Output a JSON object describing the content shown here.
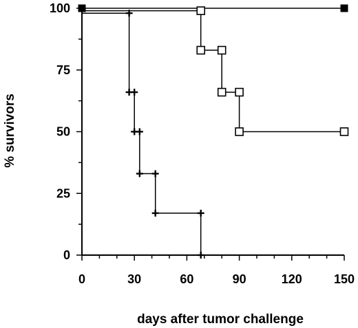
{
  "chart_data": {
    "type": "line",
    "xlabel": "days after tumor challenge",
    "ylabel": "% survivors",
    "xlim": [
      0,
      150
    ],
    "ylim": [
      0,
      100
    ],
    "xticks": [
      0,
      30,
      60,
      90,
      120,
      150
    ],
    "yticks": [
      0,
      25,
      50,
      75,
      100
    ],
    "grid": false,
    "legend": "none",
    "series": [
      {
        "marker": "filled-square",
        "x": [
          0,
          150
        ],
        "y": [
          100,
          100
        ]
      },
      {
        "marker": "open-square",
        "x": [
          0,
          68,
          68,
          80,
          80,
          90,
          90,
          150
        ],
        "y": [
          99,
          99,
          83,
          83,
          66,
          66,
          50,
          50
        ]
      },
      {
        "marker": "plus",
        "x": [
          0,
          27,
          27,
          30,
          30,
          33,
          33,
          42,
          42,
          68,
          68
        ],
        "y": [
          98,
          98,
          66,
          66,
          50,
          50,
          33,
          33,
          17,
          17,
          0
        ]
      }
    ]
  }
}
